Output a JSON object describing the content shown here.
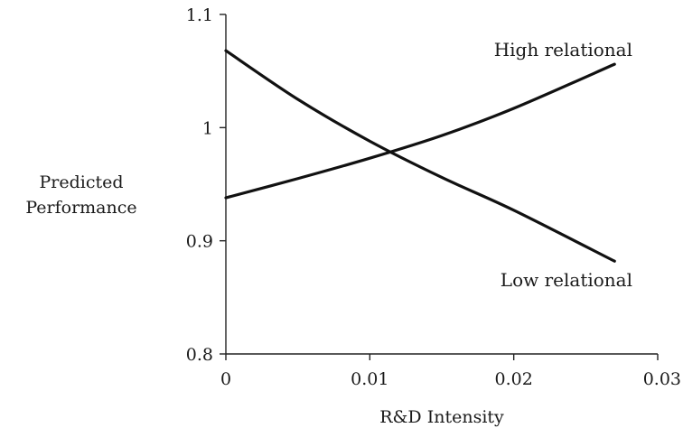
{
  "chart_data": {
    "type": "line",
    "title": "",
    "xlabel": "R&D Intensity",
    "ylabel_lines": [
      "Predicted",
      "Performance"
    ],
    "xlim": [
      0,
      0.03
    ],
    "ylim": [
      0.8,
      1.1
    ],
    "xticks": [
      0,
      0.01,
      0.02,
      0.03
    ],
    "xtick_labels": [
      "0",
      "0.01",
      "0.02",
      "0.03"
    ],
    "yticks": [
      0.8,
      0.9,
      1.0,
      1.1
    ],
    "ytick_labels": [
      "0.8",
      "0.9",
      "1",
      "1.1"
    ],
    "grid": false,
    "series": [
      {
        "name": "High relational",
        "x": [
          0,
          0.005,
          0.01,
          0.015,
          0.02,
          0.027
        ],
        "y": [
          0.938,
          0.955,
          0.973,
          0.993,
          1.017,
          1.056
        ]
      },
      {
        "name": "Low relational",
        "x": [
          0,
          0.005,
          0.01,
          0.015,
          0.02,
          0.027
        ],
        "y": [
          1.068,
          1.025,
          0.988,
          0.956,
          0.927,
          0.882
        ]
      }
    ]
  }
}
